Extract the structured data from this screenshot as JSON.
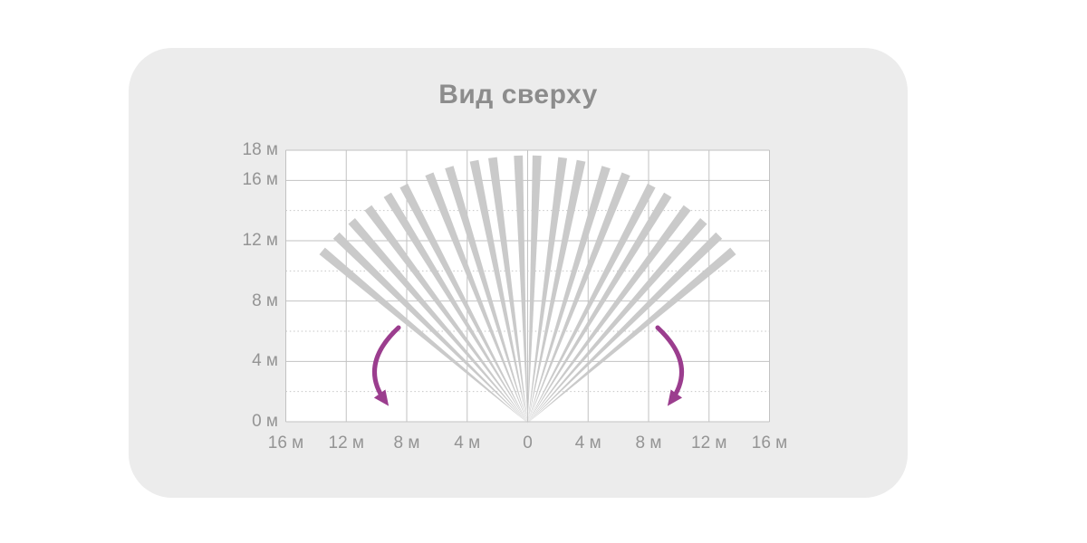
{
  "chart_data": {
    "type": "radial-fan",
    "title": "Вид сверху",
    "unit": "м",
    "x_axis": {
      "min": -16,
      "max": 16,
      "grid_step_m": 4,
      "ticks": [
        {
          "label": "16 м",
          "value": -16
        },
        {
          "label": "12 м",
          "value": -12
        },
        {
          "label": "8 м",
          "value": -8
        },
        {
          "label": "4 м",
          "value": -4
        },
        {
          "label": "0",
          "value": 0
        },
        {
          "label": "4 м",
          "value": 4
        },
        {
          "label": "8 м",
          "value": 8
        },
        {
          "label": "12 м",
          "value": 12
        },
        {
          "label": "16 м",
          "value": 16
        }
      ]
    },
    "y_axis": {
      "min": 0,
      "max": 18,
      "solid_grid_step_m": 4,
      "dotted_grid_step_m": 2,
      "ticks": [
        {
          "label": "18 м",
          "value": 18
        },
        {
          "label": "16 м",
          "value": 16
        },
        {
          "label": "12 м",
          "value": 12
        },
        {
          "label": "8 м",
          "value": 8
        },
        {
          "label": "4 м",
          "value": 4
        },
        {
          "label": "0 м",
          "value": 0
        }
      ]
    },
    "beams": {
      "count": 22,
      "radius_m": 17.75,
      "half_width_deg": 0.95,
      "angles_deg": [
        -50,
        -45.5,
        -41,
        -36.5,
        -31.5,
        -27.5,
        -21.5,
        -17,
        -11.5,
        -7.5,
        -2,
        2,
        7.5,
        11.5,
        17,
        21.5,
        27.5,
        31.5,
        36.5,
        41,
        45.5,
        50
      ]
    },
    "rotation_arrows": {
      "sides": [
        "left",
        "right"
      ]
    },
    "colors": {
      "card_bg": "#ececec",
      "plot_bg": "#ffffff",
      "grid_solid": "#c2c2c2",
      "grid_dotted": "#c6c6c6",
      "beam": "#cacaca",
      "arrow": "#9b3d8e",
      "title": "#8c8c8c",
      "tick_label": "#949494"
    }
  }
}
